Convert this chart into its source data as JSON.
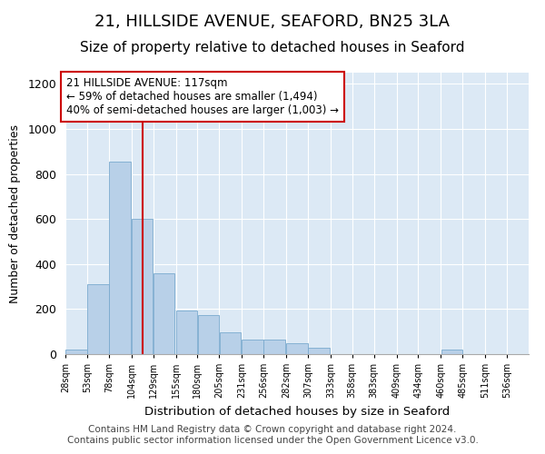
{
  "title": "21, HILLSIDE AVENUE, SEAFORD, BN25 3LA",
  "subtitle": "Size of property relative to detached houses in Seaford",
  "xlabel": "Distribution of detached houses by size in Seaford",
  "ylabel": "Number of detached properties",
  "bar_color": "#b8d0e8",
  "bar_edge_color": "#7aaace",
  "vline_color": "#cc0000",
  "vline_x": 117,
  "annotation_text": "21 HILLSIDE AVENUE: 117sqm\n← 59% of detached houses are smaller (1,494)\n40% of semi-detached houses are larger (1,003) →",
  "annotation_box_color": "#cc0000",
  "bins": [
    28,
    53,
    78,
    104,
    129,
    155,
    180,
    205,
    231,
    256,
    282,
    307,
    333,
    358,
    383,
    409,
    434,
    460,
    485,
    511,
    536
  ],
  "values": [
    20,
    310,
    855,
    600,
    360,
    195,
    175,
    95,
    65,
    65,
    50,
    30,
    0,
    0,
    0,
    0,
    0,
    20,
    0,
    0
  ],
  "xlim_left": 28,
  "xlim_right": 561,
  "ylim": [
    0,
    1250
  ],
  "yticks": [
    0,
    200,
    400,
    600,
    800,
    1000,
    1200
  ],
  "background_color": "#dce9f5",
  "footer": "Contains HM Land Registry data © Crown copyright and database right 2024.\nContains public sector information licensed under the Open Government Licence v3.0.",
  "title_fontsize": 13,
  "subtitle_fontsize": 11,
  "annotation_fontsize": 8.5,
  "footer_fontsize": 7.5,
  "bin_width": 25
}
